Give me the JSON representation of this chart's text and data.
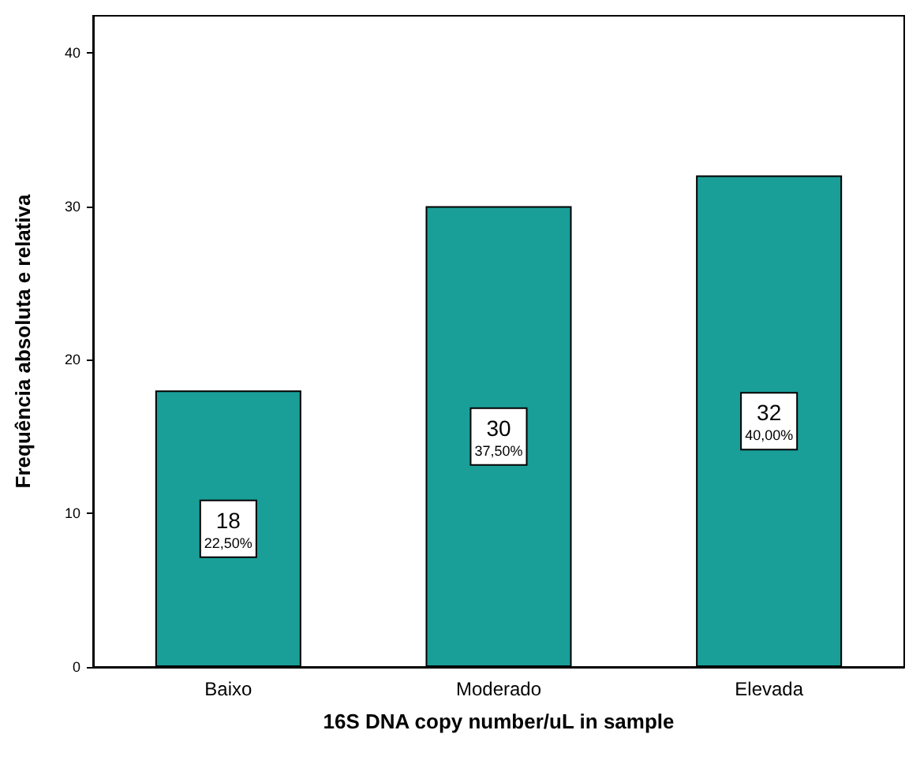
{
  "chart_data": {
    "type": "bar",
    "xlabel": "16S DNA copy number/uL in sample",
    "ylabel": "Frequência absoluta e relativa",
    "categories": [
      "Baixo",
      "Moderado",
      "Elevada"
    ],
    "values": [
      18,
      30,
      32
    ],
    "color": "#1a9e98",
    "value_labels": [
      "18\n22,50%",
      "30\n37,50%",
      "32\n40,00%"
    ],
    "ylim": [
      0,
      42.4
    ],
    "yticks": [
      0,
      10,
      20,
      30,
      40
    ],
    "grid": false
  }
}
